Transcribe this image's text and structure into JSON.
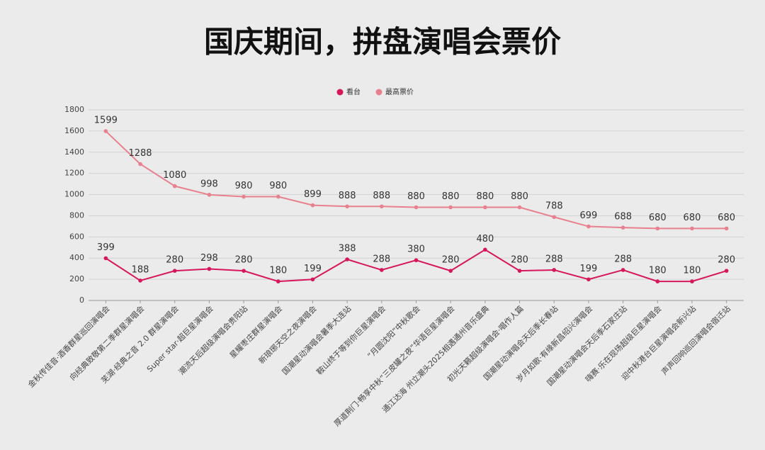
{
  "chart_data": {
    "type": "line",
    "title": "国庆期间，拼盘演唱会票价",
    "categories": [
      "金秋传佳音·酒香群星巡回演唱会",
      "向经典致敬第二季群星演唱会",
      "芜湖·经典之音 2.0 群星演唱会",
      "Super star·超巨星演唱会",
      "潮流天后超级演唱会贵阳站",
      "星耀枣庄群星演唱会",
      "新琅琊天空之夜演唱会",
      "国潮星动演唱会暑季大连站",
      "鞍山终于等到你巨星演唱会",
      "“月圆沈阳”中秋歌会",
      "厚道荆门·畅享中秋“三皮罐之夜”华语巨星演唱会",
      "通江达海 州立潮头2025相遇通州音乐盛典",
      "初光天籁超级演唱会·唱作人篇",
      "国潮星动演唱会天后季长春站",
      "岁月如歌·有缘新昌绍兴演唱会",
      "国潮星动演唱会天后季石家庄站",
      "嗨赛·乐在现场超级巨星演唱会",
      "迎中秋港台巨星演唱会新兴站",
      "声声回响巡回演唱会宿迁站"
    ],
    "series": [
      {
        "name": "看台",
        "color": "#d6175c",
        "values": [
          399,
          188,
          280,
          298,
          280,
          180,
          199,
          388,
          288,
          380,
          280,
          480,
          280,
          288,
          199,
          288,
          180,
          180,
          280
        ]
      },
      {
        "name": "最高票价",
        "color": "#e8818f",
        "values": [
          1599,
          1288,
          1080,
          998,
          980,
          980,
          899,
          888,
          888,
          880,
          880,
          880,
          880,
          788,
          699,
          688,
          680,
          680,
          680
        ]
      }
    ],
    "ylim": [
      0,
      1800
    ],
    "yticks": [
      0,
      200,
      400,
      600,
      800,
      1000,
      1200,
      1400,
      1600,
      1800
    ],
    "grid": true
  }
}
